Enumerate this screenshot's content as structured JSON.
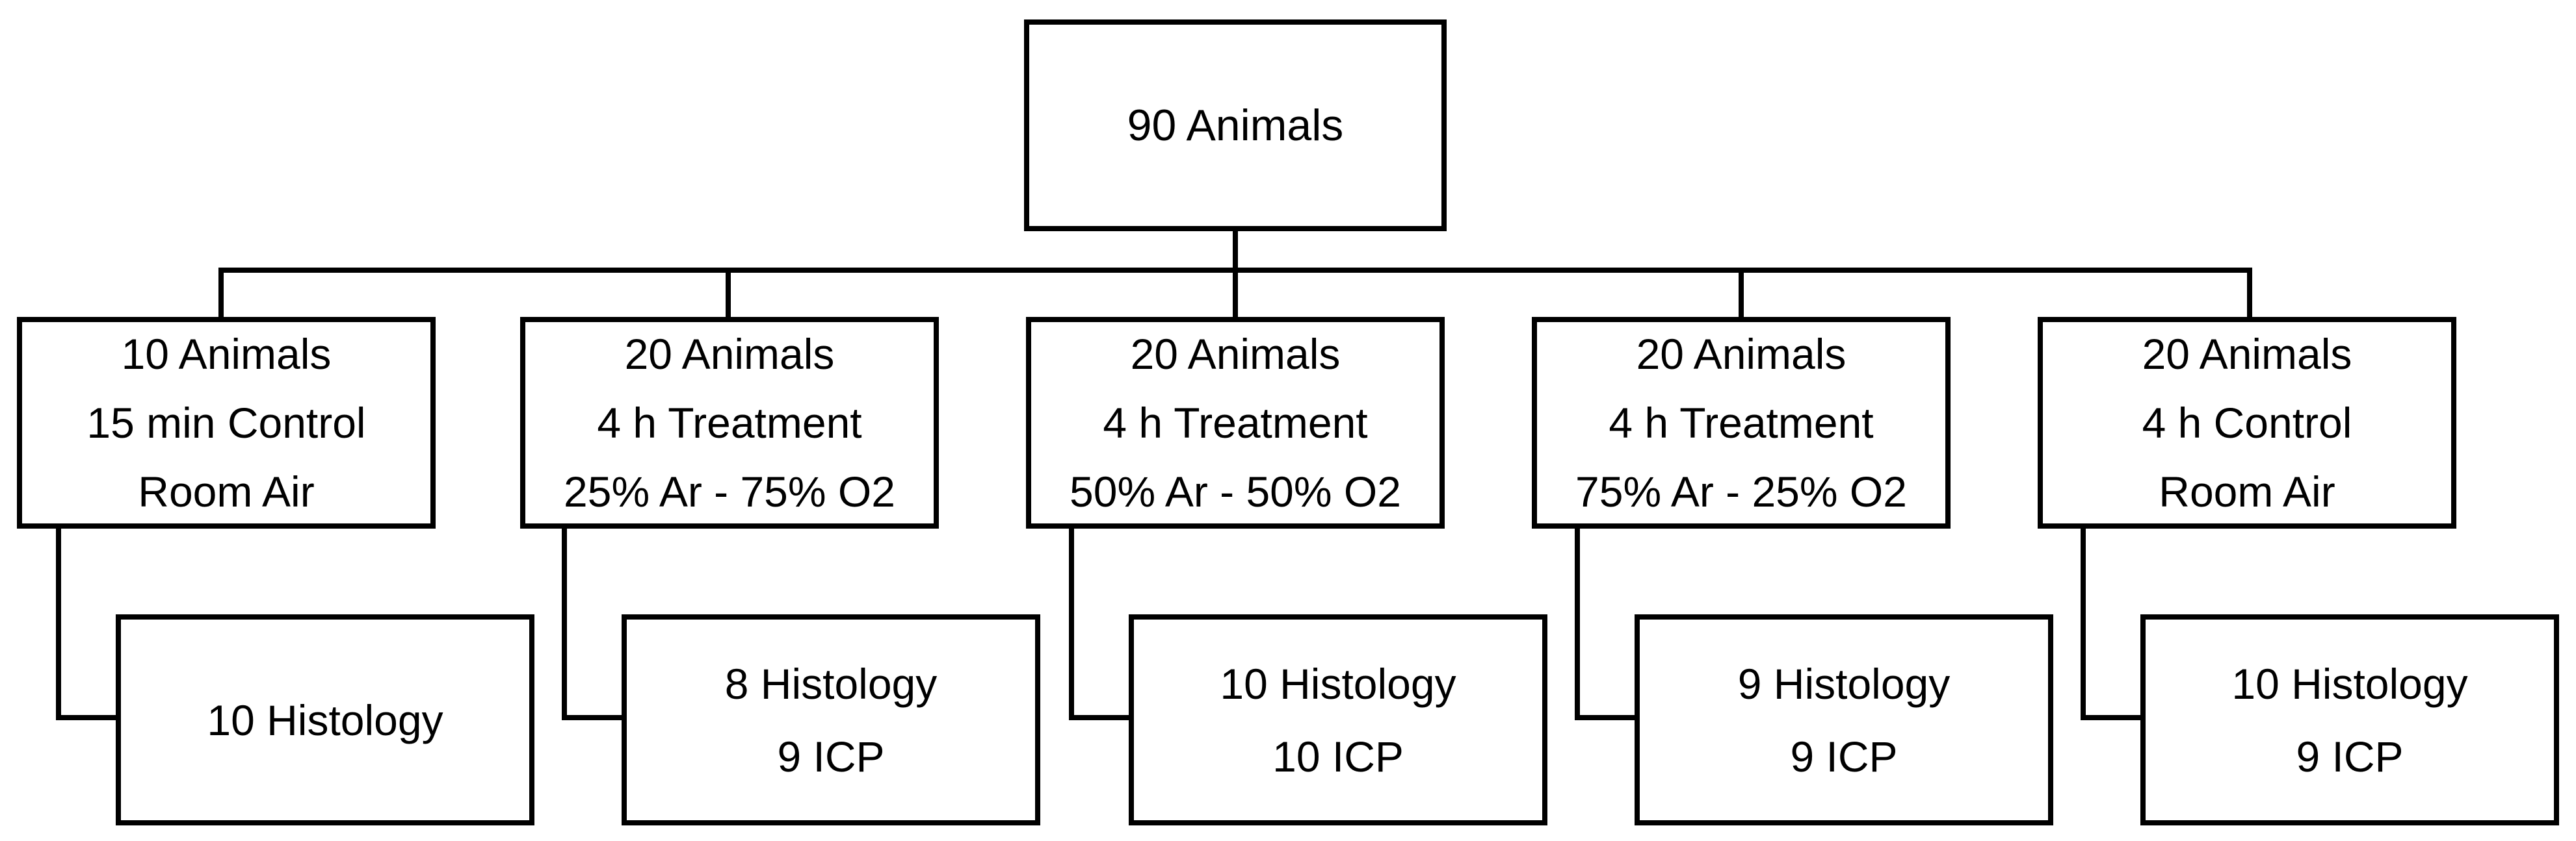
{
  "root": {
    "label": "90 Animals"
  },
  "groups": [
    {
      "lines": [
        "10 Animals",
        "15 min Control",
        "Room Air"
      ],
      "result": [
        "10 Histology"
      ]
    },
    {
      "lines": [
        "20 Animals",
        "4 h Treatment",
        "25% Ar - 75% O2"
      ],
      "result": [
        "8 Histology",
        "9 ICP"
      ]
    },
    {
      "lines": [
        "20 Animals",
        "4 h Treatment",
        "50% Ar - 50% O2"
      ],
      "result": [
        "10 Histology",
        "10 ICP"
      ]
    },
    {
      "lines": [
        "20 Animals",
        "4 h Treatment",
        "75% Ar - 25% O2"
      ],
      "result": [
        "9 Histology",
        "9 ICP"
      ]
    },
    {
      "lines": [
        "20 Animals",
        "4 h Control",
        "Room Air"
      ],
      "result": [
        "10 Histology",
        "9 ICP"
      ]
    }
  ]
}
